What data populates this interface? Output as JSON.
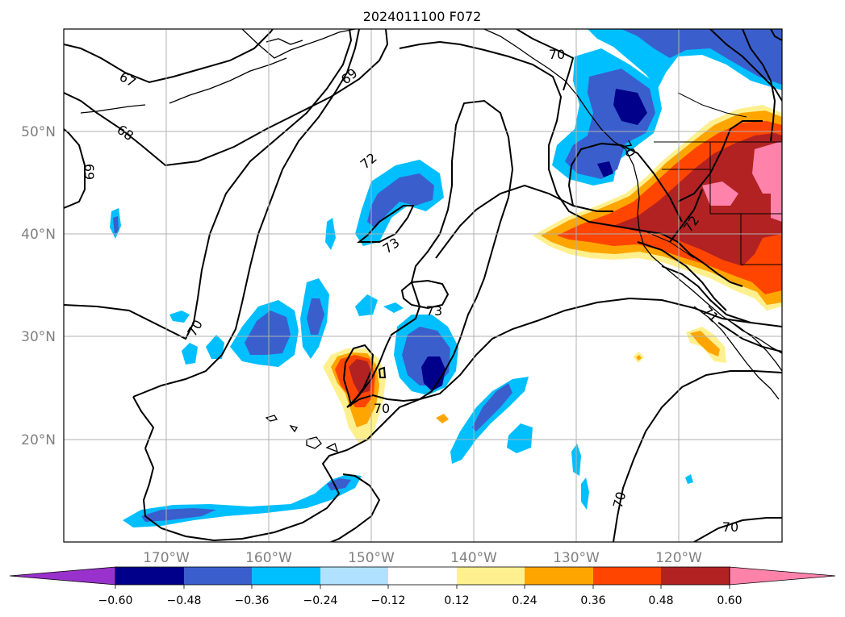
{
  "title": "2024011100 F072",
  "lat_labels": [
    "50°N",
    "40°N",
    "30°N",
    "20°N"
  ],
  "lon_labels": [
    "170°W",
    "160°W",
    "150°W",
    "140°W",
    "130°W",
    "120°W"
  ],
  "colorbar": {
    "ticks": [
      "−0.60",
      "−0.48",
      "−0.36",
      "−0.24",
      "−0.12",
      "0.12",
      "0.24",
      "0.36",
      "0.48",
      "0.60"
    ],
    "colors": [
      "#9932cc",
      "#00008b",
      "#3a5fcd",
      "#00bfff",
      "#b0e2ff",
      "#ffffff",
      "#fff08f",
      "#ffa500",
      "#ff4500",
      "#b22222",
      "#ff82ab"
    ]
  },
  "contour_labels": {
    "c67": "67",
    "c68": "68",
    "c69a": "69",
    "c69b": "69",
    "c70a": "70",
    "c70b": "70",
    "c70c": "70",
    "c70d": "70",
    "c70e": "70",
    "c70f": "70",
    "c71": "71",
    "c72a": "72",
    "c72b": "72",
    "c73a": "73",
    "c73b": "73"
  }
}
